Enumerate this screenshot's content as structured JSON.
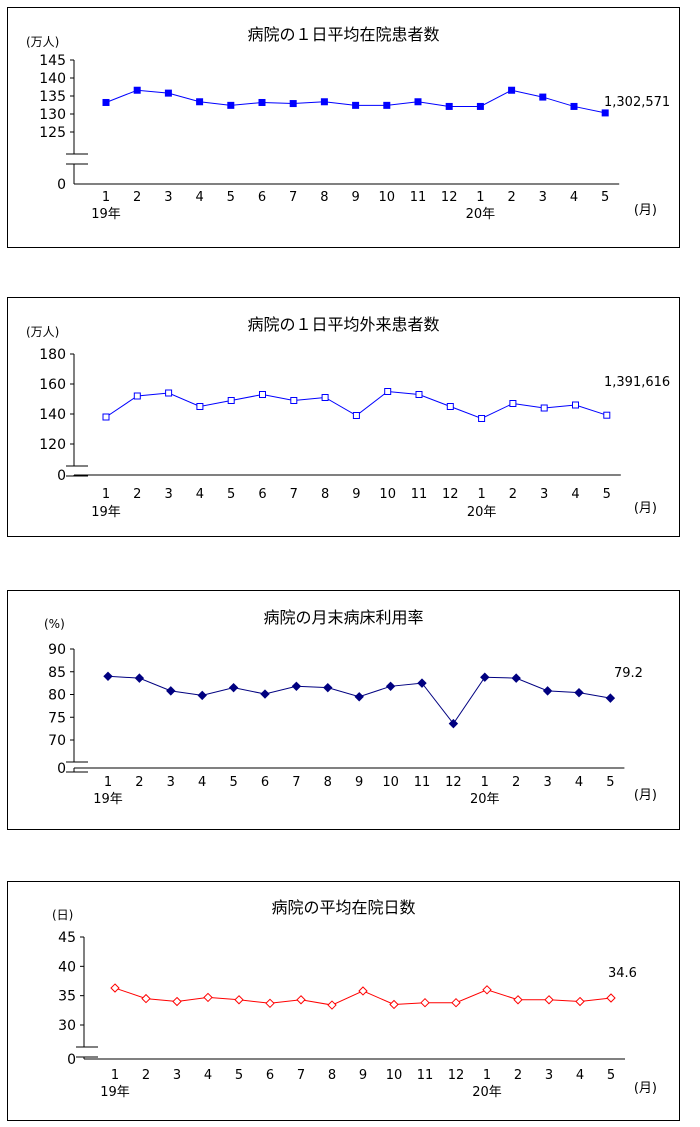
{
  "month_labels": [
    "1",
    "2",
    "3",
    "4",
    "5",
    "6",
    "7",
    "8",
    "9",
    "10",
    "11",
    "12",
    "1",
    "2",
    "3",
    "4",
    "5"
  ],
  "year_labels": [
    {
      "index": 0,
      "text": "19年"
    },
    {
      "index": 12,
      "text": "20年"
    }
  ],
  "month_unit": "(月)",
  "chart_data": [
    {
      "type": "line",
      "title": "病院の１日平均在院患者数",
      "unit_label": "(万人)",
      "yticks": [
        "145",
        "140",
        "135",
        "130",
        "125"
      ],
      "tick_values": [
        145,
        140,
        135,
        130,
        125
      ],
      "zero_label": "0",
      "ylim": [
        125,
        145
      ],
      "axis_break": true,
      "latest_label": "1,302,571",
      "color": "#0000ff",
      "marker": "filled-square",
      "x": [
        "19年1",
        "2",
        "3",
        "4",
        "5",
        "6",
        "7",
        "8",
        "9",
        "10",
        "11",
        "12",
        "20年1",
        "2",
        "3",
        "4",
        "5"
      ],
      "values": [
        133.2,
        136.6,
        135.8,
        133.4,
        132.4,
        133.2,
        132.9,
        133.4,
        132.4,
        132.4,
        133.4,
        132.1,
        132.1,
        136.6,
        134.7,
        132.1,
        130.3
      ]
    },
    {
      "type": "line",
      "title": "病院の１日平均外来患者数",
      "unit_label": "(万人)",
      "yticks": [
        "180",
        "160",
        "140",
        "120"
      ],
      "tick_values": [
        180,
        160,
        140,
        120
      ],
      "zero_label": "0",
      "ylim": [
        120,
        180
      ],
      "axis_break": true,
      "latest_label": "1,391,616",
      "color": "#0000ff",
      "marker": "open-square",
      "x": [
        "19年1",
        "2",
        "3",
        "4",
        "5",
        "6",
        "7",
        "8",
        "9",
        "10",
        "11",
        "12",
        "20年1",
        "2",
        "3",
        "4",
        "5"
      ],
      "values": [
        138,
        152,
        154,
        145,
        149,
        153,
        149,
        151,
        139,
        155,
        153,
        145,
        137,
        147,
        144,
        146,
        139.2
      ]
    },
    {
      "type": "line",
      "title": "病院の月末病床利用率",
      "unit_label": "(%)",
      "yticks": [
        "90",
        "85",
        "80",
        "75",
        "70"
      ],
      "tick_values": [
        90,
        85,
        80,
        75,
        70
      ],
      "zero_label": "0",
      "ylim": [
        70,
        90
      ],
      "axis_break": true,
      "latest_label": "79.2",
      "color": "#000080",
      "marker": "filled-diamond",
      "x": [
        "19年1",
        "2",
        "3",
        "4",
        "5",
        "6",
        "7",
        "8",
        "9",
        "10",
        "11",
        "12",
        "20年1",
        "2",
        "3",
        "4",
        "5"
      ],
      "values": [
        84.0,
        83.6,
        80.8,
        79.8,
        81.5,
        80.1,
        81.8,
        81.5,
        79.5,
        81.8,
        82.5,
        73.6,
        83.8,
        83.6,
        80.8,
        80.4,
        79.2
      ]
    },
    {
      "type": "line",
      "title": "病院の平均在院日数",
      "unit_label": "(日)",
      "yticks": [
        "45",
        "40",
        "35",
        "30"
      ],
      "tick_values": [
        45,
        40,
        35,
        30
      ],
      "zero_label": "0",
      "ylim": [
        30,
        45
      ],
      "axis_break": true,
      "latest_label": "34.6",
      "color": "#ff0000",
      "marker": "open-diamond",
      "x": [
        "19年1",
        "2",
        "3",
        "4",
        "5",
        "6",
        "7",
        "8",
        "9",
        "10",
        "11",
        "12",
        "20年1",
        "2",
        "3",
        "4",
        "5"
      ],
      "values": [
        36.3,
        34.5,
        34.0,
        34.7,
        34.3,
        33.7,
        34.3,
        33.4,
        35.8,
        33.5,
        33.8,
        33.8,
        36.0,
        34.3,
        34.3,
        34.0,
        34.6
      ]
    }
  ]
}
